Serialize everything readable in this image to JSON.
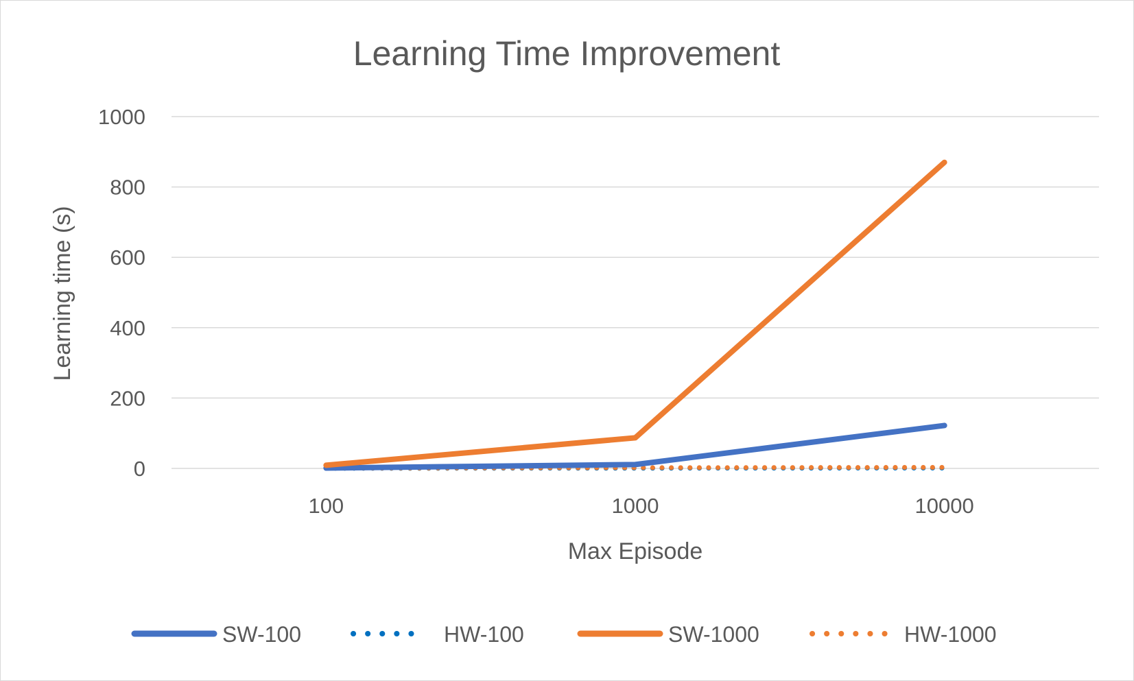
{
  "chart_data": {
    "type": "line",
    "title": "Learning Time Improvement",
    "xlabel": "Max Episode",
    "ylabel": "Learning time (s)",
    "categories": [
      "100",
      "1000",
      "10000"
    ],
    "ylim": [
      0,
      1000
    ],
    "yticks": [
      "0",
      "200",
      "400",
      "600",
      "800",
      "1000"
    ],
    "grid": true,
    "legend_position": "bottom",
    "series": [
      {
        "name": "SW-100",
        "values": [
          1,
          11,
          122
        ],
        "color": "#4472C4",
        "style": "solid"
      },
      {
        "name": "HW-100",
        "values": [
          0.2,
          0.5,
          1
        ],
        "color": "#0070C0",
        "style": "dotted"
      },
      {
        "name": "SW-1000",
        "values": [
          9,
          87,
          870
        ],
        "color": "#ED7D31",
        "style": "solid"
      },
      {
        "name": "HW-1000",
        "values": [
          0.5,
          2,
          3
        ],
        "color": "#ED7D31",
        "style": "dotted"
      }
    ]
  }
}
